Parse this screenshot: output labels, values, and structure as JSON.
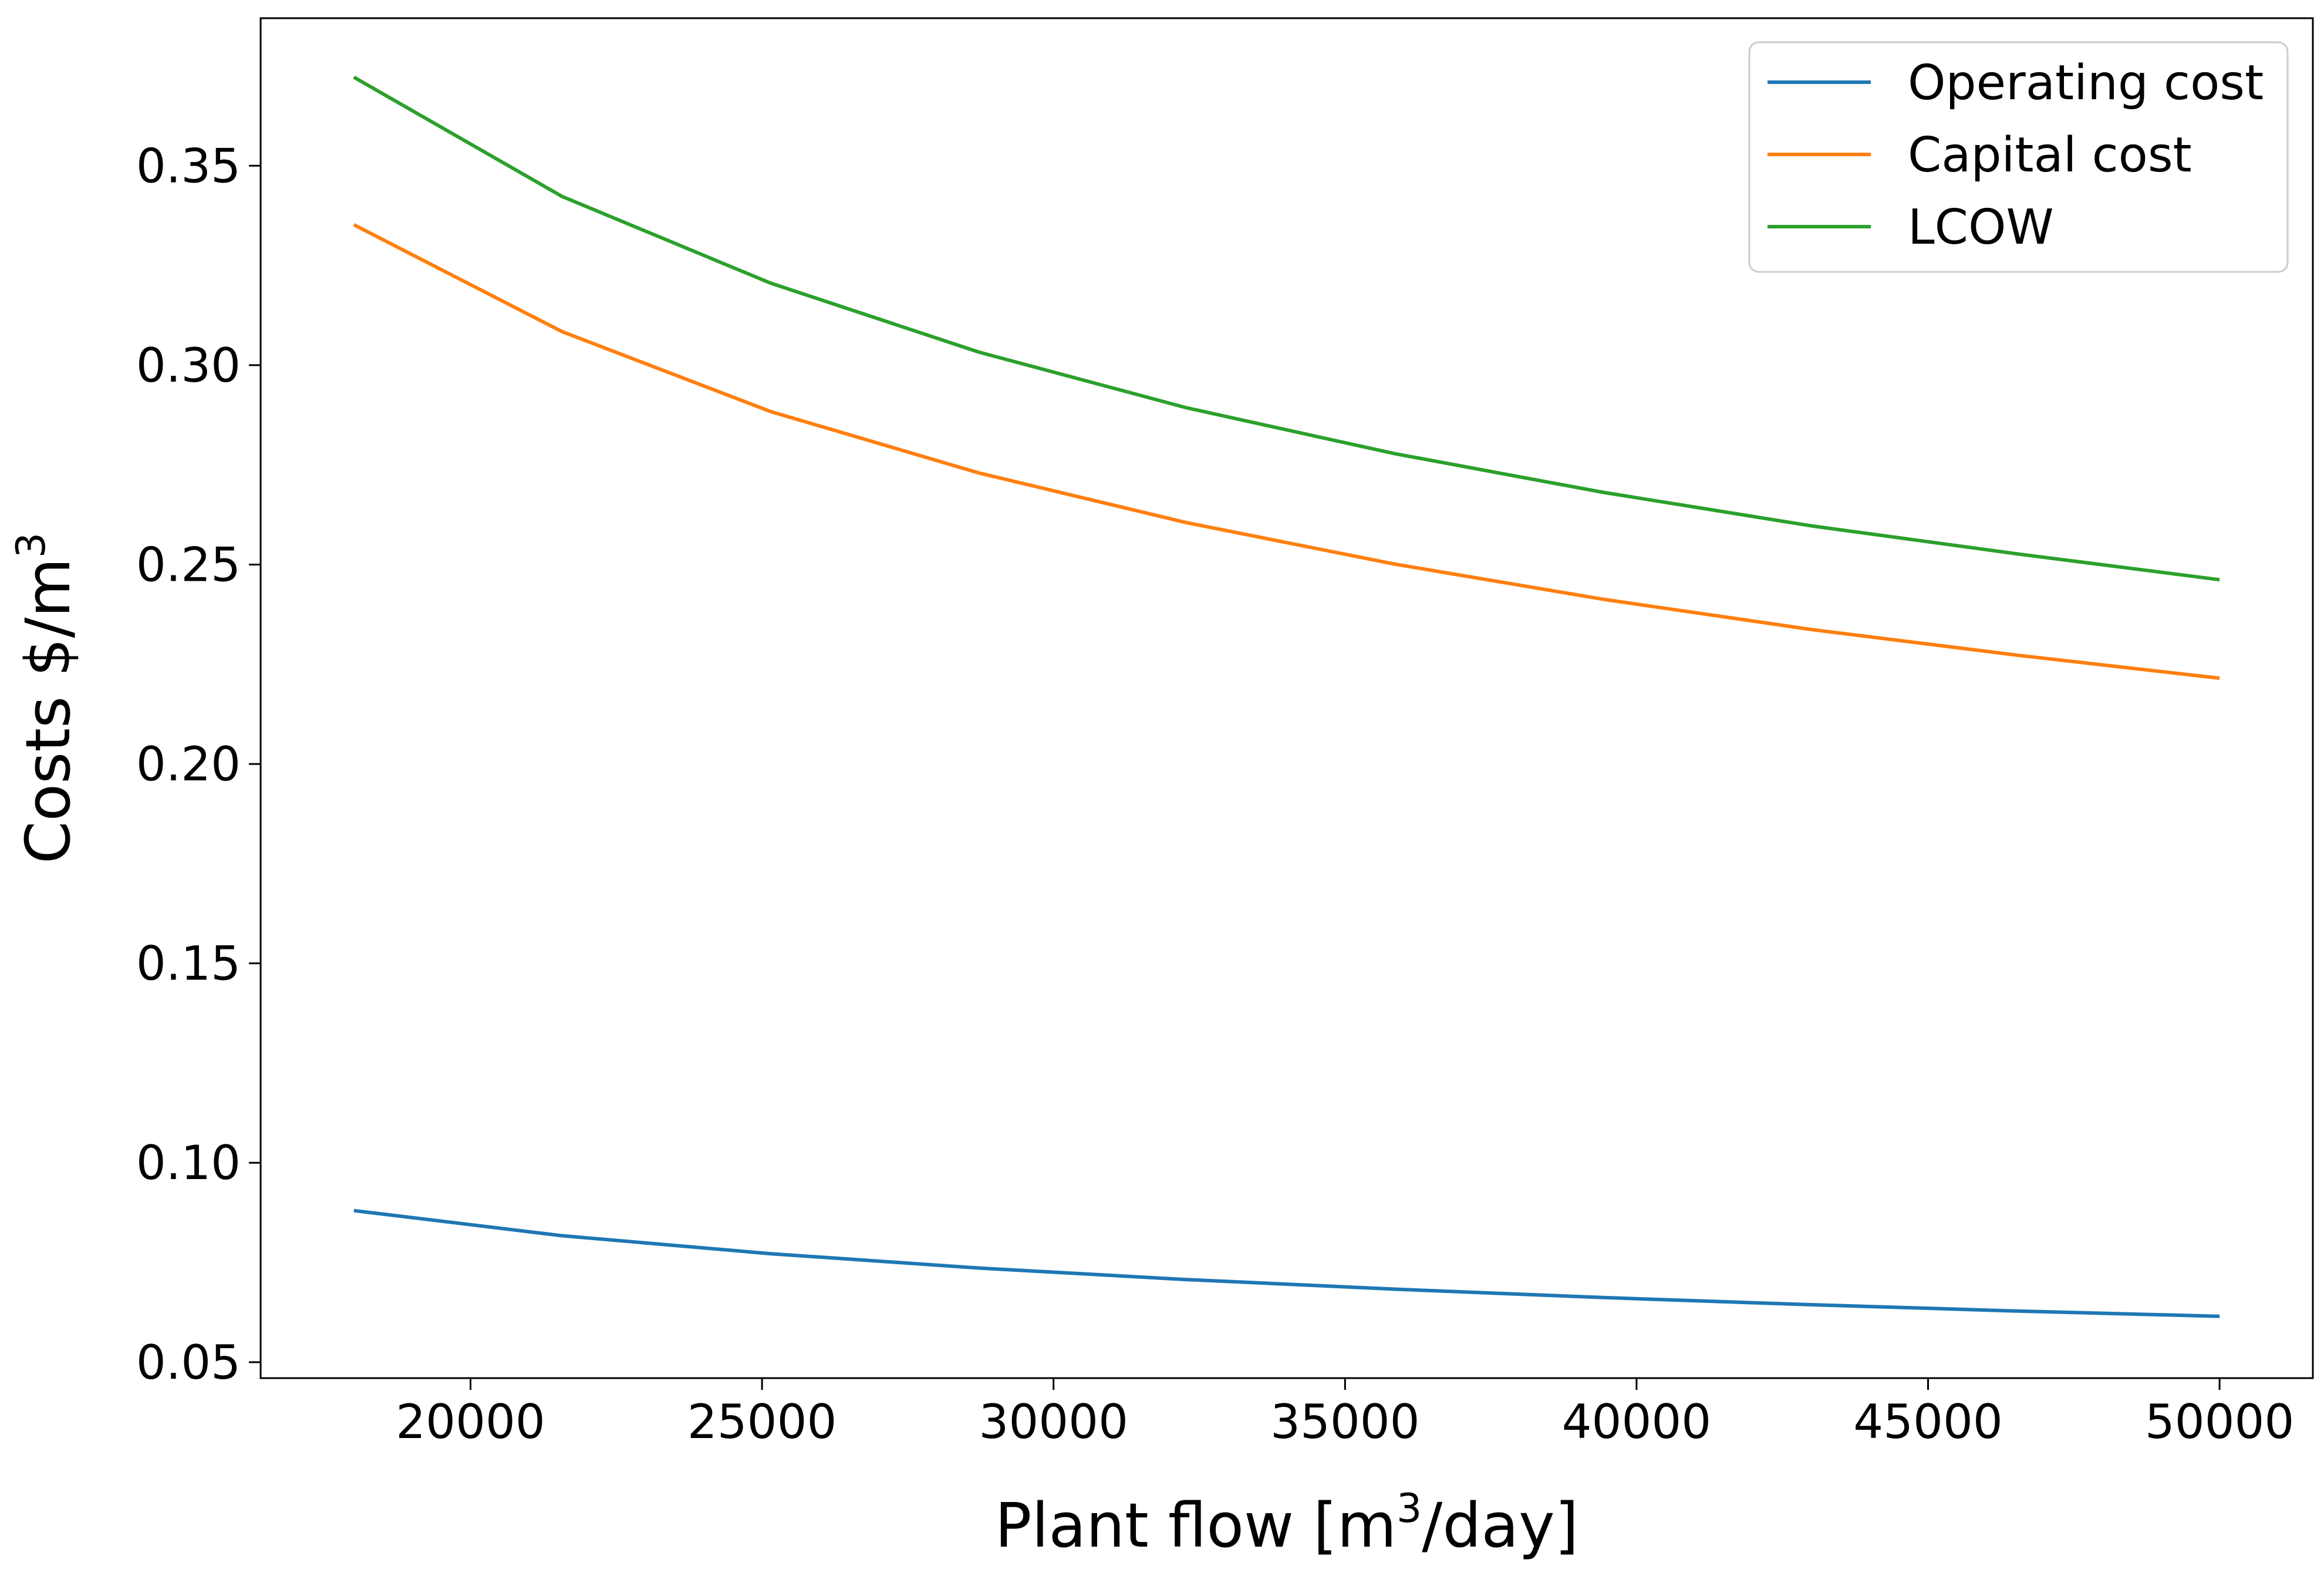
{
  "chart_data": {
    "type": "line",
    "title": "",
    "xlabel": {
      "prefix": "Plant flow [m",
      "sup": "3",
      "suffix": "/day]"
    },
    "ylabel": {
      "prefix": "Costs $/m",
      "sup": "3"
    },
    "xlim": [
      16400,
      51600
    ],
    "ylim": [
      0.046,
      0.387
    ],
    "xticks": [
      20000,
      25000,
      30000,
      35000,
      40000,
      45000,
      50000
    ],
    "xtick_labels": [
      "20000",
      "25000",
      "30000",
      "35000",
      "40000",
      "45000",
      "50000"
    ],
    "yticks": [
      0.05,
      0.1,
      0.15,
      0.2,
      0.25,
      0.3,
      0.35
    ],
    "ytick_labels": [
      "0.05",
      "0.10",
      "0.15",
      "0.20",
      "0.25",
      "0.30",
      "0.35"
    ],
    "grid": false,
    "legend_position": "top-right",
    "x": [
      18000,
      21571,
      25143,
      28714,
      32286,
      35857,
      39429,
      43000,
      46571,
      50000
    ],
    "series": [
      {
        "name": "Operating cost",
        "color": "#1f77b4",
        "values": [
          0.088,
          0.0817,
          0.0772,
          0.0736,
          0.0707,
          0.0683,
          0.0662,
          0.0644,
          0.0628,
          0.0615
        ]
      },
      {
        "name": "Capital cost",
        "color": "#ff7f0e",
        "values": [
          0.3352,
          0.3084,
          0.2884,
          0.273,
          0.2605,
          0.2501,
          0.2413,
          0.2337,
          0.2272,
          0.2215
        ]
      },
      {
        "name": "LCOW",
        "color": "#2ca02c",
        "values": [
          0.3722,
          0.3423,
          0.3206,
          0.3033,
          0.2893,
          0.2778,
          0.2681,
          0.2597,
          0.2526,
          0.2462
        ]
      }
    ]
  }
}
